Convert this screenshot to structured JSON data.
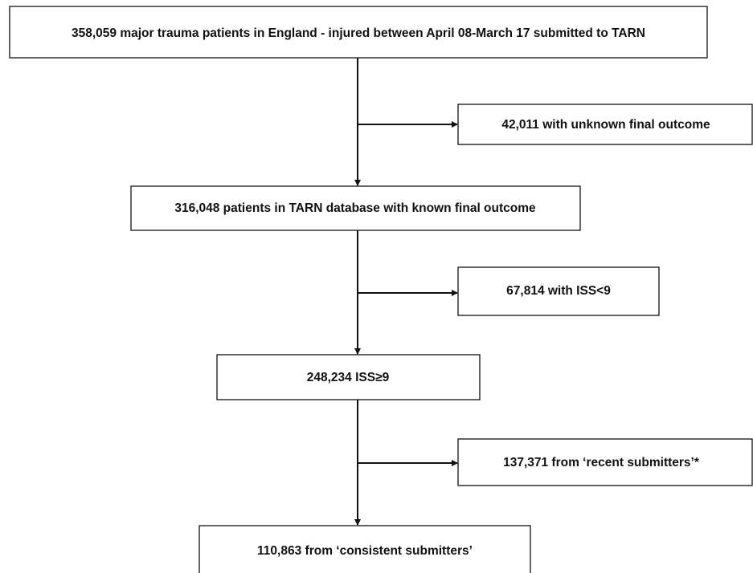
{
  "nodes": [
    {
      "label": "358,059 major trauma patients in England - injured between April 08-March 17 submitted to TARN"
    },
    {
      "label": "42,011 with unknown final outcome"
    },
    {
      "label": "316,048 patients in TARN database with known final outcome"
    },
    {
      "label": "67,814 with ISS<9"
    },
    {
      "label": "248,234 ISS≥9"
    },
    {
      "label": "137,371 from ‘recent submitters’*"
    },
    {
      "label": "110,863 from ‘consistent submitters’"
    }
  ]
}
